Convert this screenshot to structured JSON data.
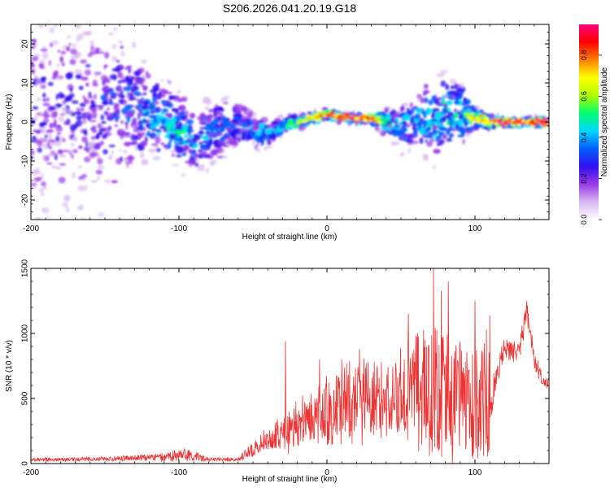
{
  "title": "S206.2026.041.20.19.G18",
  "chart_data": [
    {
      "type": "heatmap",
      "xlabel": "Height of straight line (km)",
      "ylabel": "Frequency (Hz)",
      "xlim": [
        -200,
        150
      ],
      "ylim": [
        -25,
        25
      ],
      "xticks": [
        -200,
        -100,
        0,
        100
      ],
      "yticks": [
        -20,
        -10,
        0,
        10,
        20
      ],
      "colorbar": {
        "label": "Normalized spectral amplitude",
        "range": [
          0,
          0.95
        ],
        "ticks": [
          "0.0",
          "0.2",
          "0.4",
          "0.6",
          "0.8"
        ],
        "tick_values": [
          0.0,
          0.2,
          0.4,
          0.6,
          0.8
        ],
        "colors": [
          "#ffffff",
          "#d8b8f0",
          "#9a3ae8",
          "#3010f0",
          "#0060ff",
          "#00d8ff",
          "#00ff70",
          "#b0ff00",
          "#ffff00",
          "#ff8000",
          "#ff0000",
          "#ff0080"
        ]
      },
      "frequency_track": {
        "x": [
          -200,
          -170,
          -140,
          -120,
          -100,
          -90,
          -80,
          -60,
          -50,
          -40,
          -30,
          -20,
          -10,
          0,
          10,
          20,
          30,
          40,
          50,
          60,
          70,
          80,
          90,
          100,
          110,
          120,
          130,
          140,
          150
        ],
        "freq": [
          3,
          3,
          4,
          2,
          -2,
          -5,
          -3,
          0,
          -2,
          -3,
          -1,
          0,
          1,
          2,
          1,
          1,
          1,
          0,
          -1,
          0,
          1,
          2,
          2,
          1,
          0,
          0,
          0,
          0,
          0
        ],
        "amplitude": [
          0.25,
          0.25,
          0.3,
          0.4,
          0.45,
          0.4,
          0.35,
          0.35,
          0.4,
          0.45,
          0.5,
          0.6,
          0.7,
          0.8,
          0.85,
          0.85,
          0.85,
          0.5,
          0.4,
          0.45,
          0.5,
          0.5,
          0.5,
          0.7,
          0.75,
          0.9,
          0.9,
          0.9,
          0.9
        ],
        "spread_hz": [
          22,
          22,
          18,
          10,
          8,
          7,
          8,
          5,
          4,
          3,
          2,
          1.5,
          1.2,
          1.0,
          1.0,
          1.0,
          1.0,
          3,
          5,
          6,
          8,
          8,
          7,
          2,
          1.5,
          1.0,
          1.0,
          1.0,
          1.0
        ]
      }
    },
    {
      "type": "line",
      "xlabel": "Height of straight line (km)",
      "ylabel": "SNR (10 * v/v)",
      "xlim": [
        -200,
        150
      ],
      "ylim": [
        0,
        1500
      ],
      "xticks": [
        -200,
        -100,
        0,
        100
      ],
      "yticks": [
        0,
        500,
        1000,
        1500
      ],
      "color": "#ee3333",
      "envelope": {
        "x": [
          -200,
          -150,
          -110,
          -95,
          -80,
          -60,
          -50,
          -40,
          -30,
          -25,
          -20,
          -10,
          0,
          10,
          20,
          30,
          40,
          50,
          60,
          70,
          75,
          80,
          90,
          100,
          110,
          113,
          120,
          125,
          130,
          135,
          140,
          145,
          150
        ],
        "mean": [
          30,
          35,
          50,
          70,
          30,
          30,
          100,
          200,
          220,
          250,
          300,
          380,
          400,
          450,
          500,
          500,
          500,
          550,
          600,
          600,
          600,
          500,
          500,
          550,
          500,
          600,
          900,
          850,
          900,
          1150,
          800,
          650,
          620
        ],
        "amp": [
          15,
          15,
          30,
          50,
          15,
          15,
          60,
          100,
          130,
          200,
          150,
          200,
          250,
          300,
          300,
          280,
          300,
          350,
          420,
          500,
          700,
          450,
          420,
          420,
          450,
          100,
          80,
          80,
          80,
          100,
          80,
          60,
          50
        ]
      },
      "spikes": [
        {
          "x": -28,
          "y": 940
        },
        {
          "x": -5,
          "y": 800
        },
        {
          "x": 10,
          "y": 800
        },
        {
          "x": 22,
          "y": 880
        },
        {
          "x": 55,
          "y": 1150
        },
        {
          "x": 72,
          "y": 1500
        },
        {
          "x": 82,
          "y": 1400
        },
        {
          "x": 100,
          "y": 1250
        },
        {
          "x": 110,
          "y": 1140
        },
        {
          "x": 135,
          "y": 1250
        }
      ]
    }
  ]
}
